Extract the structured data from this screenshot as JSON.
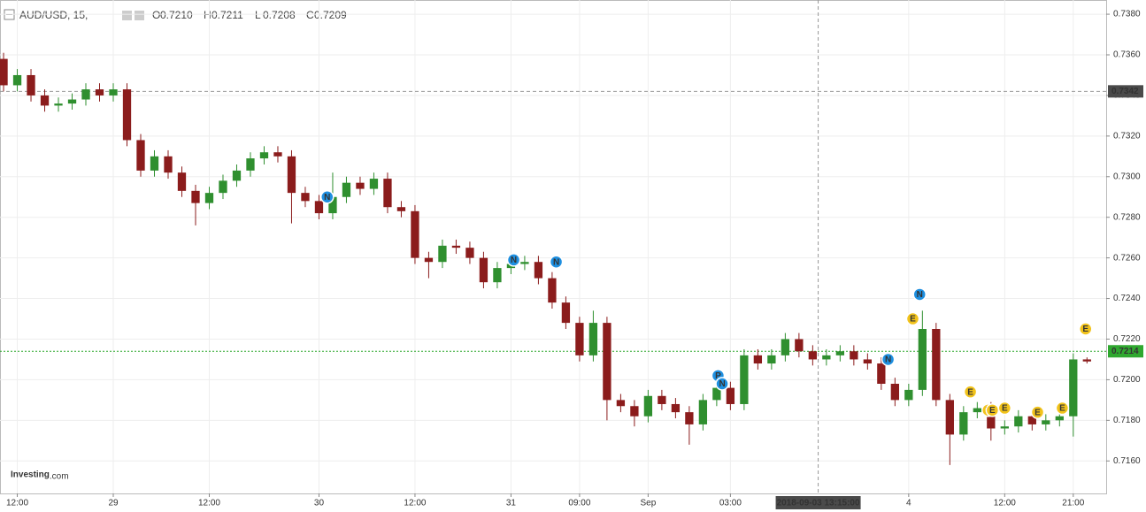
{
  "chart_data": {
    "type": "candlestick",
    "header": {
      "symbol": "AUD/USD, 15,",
      "ohlc": [
        {
          "label": "O",
          "value": "0.7210"
        },
        {
          "label": "H",
          "value": "0.7211"
        },
        {
          "label": "L",
          "value": "0.7208"
        },
        {
          "label": "C",
          "value": "0.7209"
        }
      ]
    },
    "brand": "Investing",
    "brand_suffix": ".com",
    "up_color": "#2f8f2f",
    "down_color": "#8b1c1c",
    "grid": true,
    "open": [
      0.7358,
      0.7345,
      0.735,
      0.734,
      0.7335,
      0.7336,
      0.7338,
      0.7343,
      0.734,
      0.7343,
      0.7318,
      0.7303,
      0.731,
      0.7302,
      0.7293,
      0.7287,
      0.7292,
      0.7298,
      0.7303,
      0.7309,
      0.7312,
      0.731,
      0.7292,
      0.7288,
      0.7282,
      0.729,
      0.7297,
      0.7294,
      0.7299,
      0.7285,
      0.7283,
      0.726,
      0.7258,
      0.7266,
      0.7265,
      0.726,
      0.7248,
      0.7255,
      0.7257,
      0.7258,
      0.725,
      0.7238,
      0.7228,
      0.7212,
      0.7228,
      0.719,
      0.7187,
      0.7182,
      0.7192,
      0.7188,
      0.7184,
      0.7178,
      0.719,
      0.7196,
      0.7188,
      0.7212,
      0.7208,
      0.7212,
      0.722,
      0.7214,
      0.721,
      0.7212,
      0.7214,
      0.721,
      0.7208,
      0.7198,
      0.719,
      0.7195,
      0.7225,
      0.719,
      0.7173,
      0.7184,
      0.7186,
      0.7176,
      0.7177,
      0.7182,
      0.7178,
      0.718,
      0.7182,
      0.721
    ],
    "high": [
      0.7361,
      0.7353,
      0.7353,
      0.7343,
      0.7339,
      0.7341,
      0.7346,
      0.7346,
      0.7346,
      0.7346,
      0.7321,
      0.7313,
      0.7313,
      0.7305,
      0.7296,
      0.7295,
      0.7301,
      0.7306,
      0.7312,
      0.7315,
      0.7315,
      0.7313,
      0.7295,
      0.7291,
      0.7302,
      0.73,
      0.73,
      0.7302,
      0.7302,
      0.7288,
      0.7286,
      0.7263,
      0.7269,
      0.7269,
      0.7268,
      0.7263,
      0.7258,
      0.726,
      0.7261,
      0.7261,
      0.7253,
      0.7241,
      0.7231,
      0.7234,
      0.7231,
      0.7193,
      0.719,
      0.7195,
      0.7195,
      0.7191,
      0.7187,
      0.7193,
      0.7199,
      0.7199,
      0.7215,
      0.7215,
      0.7215,
      0.7223,
      0.7223,
      0.7217,
      0.7215,
      0.7217,
      0.7217,
      0.7213,
      0.7211,
      0.7201,
      0.7198,
      0.7234,
      0.7228,
      0.7193,
      0.7187,
      0.7189,
      0.7189,
      0.718,
      0.7185,
      0.7185,
      0.7183,
      0.7185,
      0.7213,
      0.7211
    ],
    "low": [
      0.7342,
      0.7342,
      0.7337,
      0.7332,
      0.7332,
      0.7333,
      0.7335,
      0.7337,
      0.7337,
      0.7315,
      0.73,
      0.73,
      0.7299,
      0.729,
      0.7276,
      0.7284,
      0.7289,
      0.7295,
      0.73,
      0.7306,
      0.7307,
      0.7277,
      0.7285,
      0.7279,
      0.7279,
      0.7287,
      0.7291,
      0.7291,
      0.7282,
      0.728,
      0.7257,
      0.725,
      0.7255,
      0.7262,
      0.7257,
      0.7245,
      0.7245,
      0.7252,
      0.7254,
      0.7247,
      0.7235,
      0.7225,
      0.7209,
      0.7209,
      0.718,
      0.7184,
      0.7177,
      0.7179,
      0.7185,
      0.7181,
      0.7168,
      0.7175,
      0.7187,
      0.7185,
      0.7185,
      0.7205,
      0.7205,
      0.7209,
      0.7211,
      0.7207,
      0.7207,
      0.7209,
      0.7207,
      0.7205,
      0.7195,
      0.7187,
      0.7187,
      0.7192,
      0.7187,
      0.7158,
      0.717,
      0.7181,
      0.717,
      0.7173,
      0.7174,
      0.7175,
      0.7175,
      0.7177,
      0.7172,
      0.7208
    ],
    "close": [
      0.7345,
      0.735,
      0.734,
      0.7335,
      0.7336,
      0.7338,
      0.7343,
      0.734,
      0.7343,
      0.7318,
      0.7303,
      0.731,
      0.7302,
      0.7293,
      0.7287,
      0.7292,
      0.7298,
      0.7303,
      0.7309,
      0.7312,
      0.731,
      0.7292,
      0.7288,
      0.7282,
      0.729,
      0.7297,
      0.7294,
      0.7299,
      0.7285,
      0.7283,
      0.726,
      0.7258,
      0.7266,
      0.7265,
      0.726,
      0.7248,
      0.7255,
      0.7257,
      0.7258,
      0.725,
      0.7238,
      0.7228,
      0.7212,
      0.7228,
      0.719,
      0.7187,
      0.7182,
      0.7192,
      0.7188,
      0.7184,
      0.7178,
      0.719,
      0.7196,
      0.7188,
      0.7212,
      0.7208,
      0.7212,
      0.722,
      0.7214,
      0.721,
      0.7212,
      0.7214,
      0.721,
      0.7208,
      0.7198,
      0.719,
      0.7195,
      0.7225,
      0.719,
      0.7173,
      0.7184,
      0.7186,
      0.7176,
      0.7177,
      0.7182,
      0.7178,
      0.718,
      0.7182,
      0.721,
      0.7209
    ],
    "xlim": [
      -0.26,
      80.4
    ],
    "ylim": [
      0.7144,
      0.7387
    ],
    "yticks": [
      {
        "value": 0.716,
        "label": "0.7160"
      },
      {
        "value": 0.718,
        "label": "0.7180"
      },
      {
        "value": 0.72,
        "label": "0.7200"
      },
      {
        "value": 0.722,
        "label": "0.7220"
      },
      {
        "value": 0.724,
        "label": "0.7240"
      },
      {
        "value": 0.726,
        "label": "0.7260"
      },
      {
        "value": 0.728,
        "label": "0.7280"
      },
      {
        "value": 0.73,
        "label": "0.7300"
      },
      {
        "value": 0.732,
        "label": "0.7320"
      },
      {
        "value": 0.734,
        "label": "0.7340"
      },
      {
        "value": 0.736,
        "label": "0.7360"
      },
      {
        "value": 0.738,
        "label": "0.7380"
      }
    ],
    "xticks": [
      {
        "value": 1,
        "label": "12:00"
      },
      {
        "value": 8,
        "label": "29"
      },
      {
        "value": 15,
        "label": "12:00"
      },
      {
        "value": 23,
        "label": "30"
      },
      {
        "value": 30,
        "label": "12:00"
      },
      {
        "value": 37,
        "label": "31"
      },
      {
        "value": 42,
        "label": "09:00"
      },
      {
        "value": 47,
        "label": "Sep"
      },
      {
        "value": 53,
        "label": "03:00"
      },
      {
        "value": 66,
        "label": "4"
      },
      {
        "value": 73,
        "label": "12:00"
      },
      {
        "value": 78,
        "label": "21:00"
      }
    ],
    "price_line": {
      "value": 0.7214,
      "label": "0.7214",
      "color": "#2fa82f"
    },
    "crosshair": {
      "y": {
        "value": 0.7342,
        "label": "0.7342"
      },
      "x": {
        "value": 59.4,
        "label": "2018-09-03 13:15:00"
      }
    },
    "events": [
      {
        "x": 23.6,
        "y": 0.729,
        "label": "N"
      },
      {
        "x": 37.2,
        "y": 0.7259,
        "label": "N"
      },
      {
        "x": 40.3,
        "y": 0.7258,
        "label": "N"
      },
      {
        "x": 52.1,
        "y": 0.7202,
        "label": "P"
      },
      {
        "x": 52.4,
        "y": 0.7198,
        "label": "N"
      },
      {
        "x": 64.5,
        "y": 0.721,
        "label": "N"
      },
      {
        "x": 66.8,
        "y": 0.7242,
        "label": "N"
      },
      {
        "x": 66.3,
        "y": 0.723,
        "label": "E"
      },
      {
        "x": 70.5,
        "y": 0.7194,
        "label": "E"
      },
      {
        "x": 71.8,
        "y": 0.7185,
        "label": "E"
      },
      {
        "x": 72.1,
        "y": 0.7185,
        "label": "E"
      },
      {
        "x": 73.0,
        "y": 0.7186,
        "label": "E"
      },
      {
        "x": 75.4,
        "y": 0.7184,
        "label": "E"
      },
      {
        "x": 77.2,
        "y": 0.7186,
        "label": "E"
      },
      {
        "x": 78.9,
        "y": 0.7225,
        "label": "E"
      }
    ]
  }
}
